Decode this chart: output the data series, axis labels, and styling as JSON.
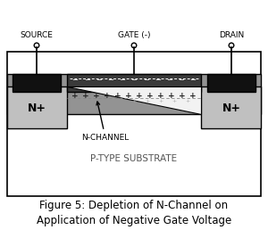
{
  "fig_width": 3.0,
  "fig_height": 2.58,
  "dpi": 100,
  "bg_color": "#ffffff",
  "title_text": "Figure 5: Depletion of N-Channel on\nApplication of Negative Gate Voltage",
  "title_fontsize": 8.5,
  "source_label": "SOURCE",
  "gate_label": "GATE (-)",
  "drain_label": "DRAIN",
  "nchannel_label": "N-CHANNEL",
  "substrate_label": "P-TYPE SUBSTRATE",
  "nplus_label": "N+",
  "body_color": "#939393",
  "gate_metal_color": "#3a3a3a",
  "nplus_color": "#c0c0c0",
  "substrate_color": "#ffffff",
  "terminal_color": "#111111",
  "plus_color": "#222222",
  "depletion_color": "#f2f2f2",
  "lead_color": "#000000"
}
